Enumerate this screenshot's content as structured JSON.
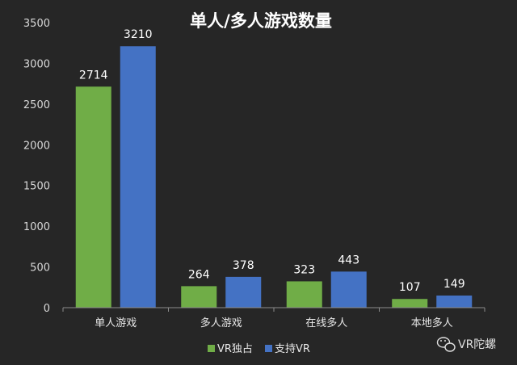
{
  "chart_data": {
    "type": "bar",
    "title": "单人/多人游戏数量",
    "categories": [
      "单人游戏",
      "多人游戏",
      "在线多人",
      "本地多人"
    ],
    "series": [
      {
        "name": "VR独占",
        "values": [
          2714,
          264,
          323,
          107
        ],
        "color": "#70ad47"
      },
      {
        "name": "支持VR",
        "values": [
          3210,
          378,
          443,
          149
        ],
        "color": "#4472c4"
      }
    ],
    "ylim": [
      0,
      3500
    ],
    "yticks": [
      0,
      500,
      1000,
      1500,
      2000,
      2500,
      3000,
      3500
    ],
    "grid": false,
    "legend": "bottom"
  },
  "watermark": {
    "text": "VR陀螺",
    "icon": "wechat-icon"
  },
  "colors": {
    "background": "#262626",
    "axis": "#8c8c8c"
  }
}
